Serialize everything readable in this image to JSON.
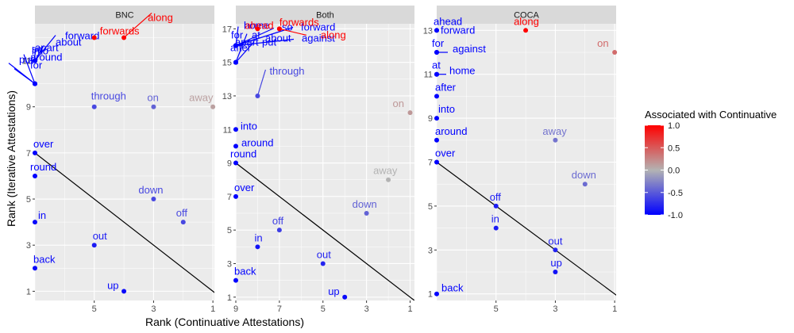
{
  "x_axis_title": "Rank (Continuative Attestations)",
  "y_axis_title": "Rank (Iterative Attestations)",
  "legend": {
    "title": "Associated with Continuative",
    "ticks": [
      "1.0",
      "0.5",
      "0.0",
      "-0.5",
      "-1.0"
    ],
    "range": [
      -1,
      1
    ]
  },
  "colors": {
    "panel_bg": "#ebebeb",
    "strip_bg": "#d9d9d9",
    "grid": "#ffffff",
    "low": "#0000ff",
    "mid": "#b3b3b3",
    "high": "#ff0000"
  },
  "chart_data": [
    {
      "type": "scatter",
      "title": "BNC",
      "x_ticks": [
        "5",
        "3",
        "1"
      ],
      "y_ticks": [
        "1",
        "3",
        "5",
        "7",
        "9",
        "11"
      ],
      "xlim": [
        7.0,
        0.95
      ],
      "ylim": [
        12.6,
        0.6
      ],
      "reference_line": "y = x",
      "points": [
        {
          "label": "up",
          "x": 4.0,
          "y": 1.0,
          "value": -0.95
        },
        {
          "label": "back",
          "x": 7.0,
          "y": 2.0,
          "value": -0.95
        },
        {
          "label": "out",
          "x": 5.0,
          "y": 3.0,
          "value": -0.85
        },
        {
          "label": "in",
          "x": 7.0,
          "y": 4.0,
          "value": -0.95
        },
        {
          "label": "off",
          "x": 2.0,
          "y": 4.0,
          "value": -0.6
        },
        {
          "label": "down",
          "x": 3.0,
          "y": 5.0,
          "value": -0.6
        },
        {
          "label": "round",
          "x": 7.0,
          "y": 6.0,
          "value": -1.0
        },
        {
          "label": "over",
          "x": 7.0,
          "y": 7.0,
          "value": -1.0
        },
        {
          "label": "through",
          "x": 5.0,
          "y": 9.0,
          "value": -0.6
        },
        {
          "label": "on",
          "x": 3.0,
          "y": 9.0,
          "value": -0.45
        },
        {
          "label": "away",
          "x": 1.0,
          "y": 9.0,
          "value": 0.1
        },
        {
          "label": "for",
          "x": 7.0,
          "y": 10.0,
          "value": -1.0
        },
        {
          "label": "put",
          "x": 7.0,
          "y": 10.0,
          "value": -1.0
        },
        {
          "label": "into",
          "x": 7.0,
          "y": 10.0,
          "value": -1.0
        },
        {
          "label": "about",
          "x": 7.0,
          "y": 11.0,
          "value": -1.0
        },
        {
          "label": "so",
          "x": 7.0,
          "y": 11.0,
          "value": -1.0
        },
        {
          "label": "forward",
          "x": 7.0,
          "y": 11.0,
          "value": -1.0
        },
        {
          "label": "apart",
          "x": 7.0,
          "y": 11.0,
          "value": -1.0
        },
        {
          "label": "around",
          "x": 7.0,
          "y": 11.0,
          "value": -1.0
        },
        {
          "label": "along",
          "x": 4.0,
          "y": 12.0,
          "value": 1.0
        },
        {
          "label": "forwards",
          "x": 5.0,
          "y": 12.0,
          "value": 1.0
        }
      ]
    },
    {
      "type": "scatter",
      "title": "Both",
      "x_ticks": [
        "9",
        "7",
        "5",
        "3",
        "1"
      ],
      "y_ticks": [
        "1",
        "3",
        "5",
        "7",
        "9",
        "11",
        "13",
        "15",
        "17"
      ],
      "xlim": [
        9.0,
        0.8
      ],
      "ylim": [
        17.3,
        0.8
      ],
      "reference_line": "y = x",
      "points": [
        {
          "label": "up",
          "x": 4.0,
          "y": 1.0,
          "value": -0.95
        },
        {
          "label": "back",
          "x": 9.0,
          "y": 2.0,
          "value": -1.0
        },
        {
          "label": "out",
          "x": 5.0,
          "y": 3.0,
          "value": -0.8
        },
        {
          "label": "in",
          "x": 8.0,
          "y": 4.0,
          "value": -0.9
        },
        {
          "label": "off",
          "x": 7.0,
          "y": 5.0,
          "value": -0.65
        },
        {
          "label": "down",
          "x": 3.0,
          "y": 6.0,
          "value": -0.45
        },
        {
          "label": "over",
          "x": 9.0,
          "y": 7.0,
          "value": -1.0
        },
        {
          "label": "away",
          "x": 2.0,
          "y": 8.0,
          "value": 0.0
        },
        {
          "label": "round",
          "x": 9.0,
          "y": 9.0,
          "value": -1.0
        },
        {
          "label": "around",
          "x": 9.0,
          "y": 10.0,
          "value": -1.0
        },
        {
          "label": "into",
          "x": 9.0,
          "y": 11.0,
          "value": -1.0
        },
        {
          "label": "on",
          "x": 1.0,
          "y": 12.0,
          "value": 0.15
        },
        {
          "label": "through",
          "x": 8.0,
          "y": 13.0,
          "value": -0.6
        },
        {
          "label": "for",
          "x": 9.0,
          "y": 15.0,
          "value": -1.0
        },
        {
          "label": "at",
          "x": 9.0,
          "y": 15.0,
          "value": -1.0
        },
        {
          "label": "after",
          "x": 9.0,
          "y": 15.0,
          "value": -1.0
        },
        {
          "label": "put",
          "x": 9.0,
          "y": 15.0,
          "value": -1.0
        },
        {
          "label": "home",
          "x": 9.0,
          "y": 16.0,
          "value": -1.0
        },
        {
          "label": "so",
          "x": 9.0,
          "y": 16.0,
          "value": -1.0
        },
        {
          "label": "forward",
          "x": 9.0,
          "y": 16.0,
          "value": -1.0
        },
        {
          "label": "apart",
          "x": 9.0,
          "y": 16.0,
          "value": -1.0
        },
        {
          "label": "about",
          "x": 9.0,
          "y": 16.0,
          "value": -1.0
        },
        {
          "label": "against",
          "x": 9.0,
          "y": 16.0,
          "value": -1.0
        },
        {
          "label": "ahead",
          "x": 8.0,
          "y": 17.0,
          "value": 1.0
        },
        {
          "label": "forwards",
          "x": 7.0,
          "y": 17.0,
          "value": 1.0
        },
        {
          "label": "along",
          "x": 7.0,
          "y": 17.0,
          "value": 1.0
        }
      ]
    },
    {
      "type": "scatter",
      "title": "COCA",
      "x_ticks": [
        "5",
        "3",
        "1"
      ],
      "y_ticks": [
        "1",
        "3",
        "5",
        "7",
        "9",
        "11",
        "13"
      ],
      "xlim": [
        7.0,
        0.95
      ],
      "ylim": [
        13.3,
        0.7
      ],
      "reference_line": "y = x",
      "points": [
        {
          "label": "back",
          "x": 7.0,
          "y": 1.0,
          "value": -1.0
        },
        {
          "label": "up",
          "x": 3.0,
          "y": 2.0,
          "value": -0.9
        },
        {
          "label": "out",
          "x": 3.0,
          "y": 3.0,
          "value": -0.8
        },
        {
          "label": "in",
          "x": 5.0,
          "y": 4.0,
          "value": -0.85
        },
        {
          "label": "off",
          "x": 5.0,
          "y": 5.0,
          "value": -0.85
        },
        {
          "label": "down",
          "x": 2.0,
          "y": 6.0,
          "value": -0.4
        },
        {
          "label": "over",
          "x": 7.0,
          "y": 7.0,
          "value": -1.0
        },
        {
          "label": "away",
          "x": 3.0,
          "y": 8.0,
          "value": -0.35
        },
        {
          "label": "around",
          "x": 7.0,
          "y": 8.0,
          "value": -1.0
        },
        {
          "label": "into",
          "x": 7.0,
          "y": 9.0,
          "value": -1.0
        },
        {
          "label": "after",
          "x": 7.0,
          "y": 10.0,
          "value": -1.0
        },
        {
          "label": "at",
          "x": 7.0,
          "y": 11.0,
          "value": -1.0
        },
        {
          "label": "home",
          "x": 7.0,
          "y": 11.0,
          "value": -1.0
        },
        {
          "label": "for",
          "x": 7.0,
          "y": 12.0,
          "value": -1.0
        },
        {
          "label": "against",
          "x": 7.0,
          "y": 12.0,
          "value": -1.0
        },
        {
          "label": "on",
          "x": 1.0,
          "y": 12.0,
          "value": 0.4
        },
        {
          "label": "ahead",
          "x": 7.0,
          "y": 13.0,
          "value": -1.0
        },
        {
          "label": "forward",
          "x": 7.0,
          "y": 13.0,
          "value": -1.0
        },
        {
          "label": "along",
          "x": 4.0,
          "y": 13.0,
          "value": 1.0
        }
      ]
    }
  ]
}
